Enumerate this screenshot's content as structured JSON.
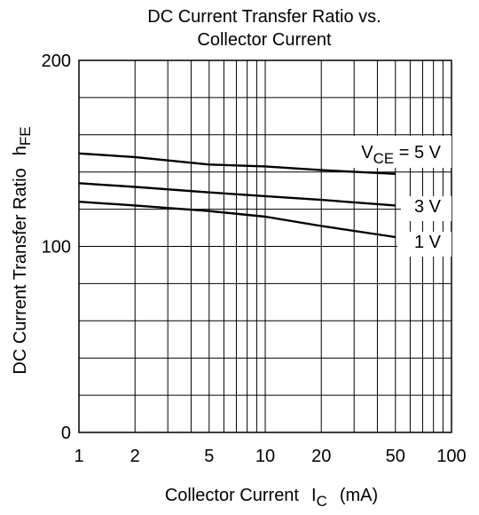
{
  "chart_data": {
    "type": "line",
    "title": [
      "DC Current Transfer Ratio vs.",
      "Collector Current"
    ],
    "xlabel": {
      "text": "Collector Current",
      "symbol": "I",
      "subscript": "C",
      "unit": "(mA)"
    },
    "ylabel": {
      "text": "DC Current Transfer Ratio",
      "symbol": "h",
      "subscript": "FE"
    },
    "x_scale": "log",
    "xlim": [
      1,
      100
    ],
    "ylim": [
      0,
      200
    ],
    "x_ticks": [
      1,
      2,
      5,
      10,
      20,
      50,
      100
    ],
    "x_tick_labels": [
      "1",
      "2",
      "5",
      "10",
      "20",
      "50",
      "100"
    ],
    "y_ticks": [
      0,
      100,
      200
    ],
    "y_tick_labels": [
      "0",
      "100",
      "200"
    ],
    "grid": true,
    "series": [
      {
        "name": "5 V",
        "label_prefix": "V",
        "label_sub": "CE",
        "label_mid": " = ",
        "x": [
          1,
          2,
          5,
          10,
          20,
          50
        ],
        "y": [
          150,
          148,
          144,
          143,
          141,
          139
        ]
      },
      {
        "name": "3 V",
        "x": [
          1,
          2,
          5,
          10,
          20,
          50
        ],
        "y": [
          134,
          132,
          129,
          127,
          125,
          122
        ]
      },
      {
        "name": "1 V",
        "x": [
          1,
          2,
          5,
          10,
          20,
          50
        ],
        "y": [
          124,
          122,
          119,
          116,
          111,
          105
        ]
      }
    ]
  }
}
